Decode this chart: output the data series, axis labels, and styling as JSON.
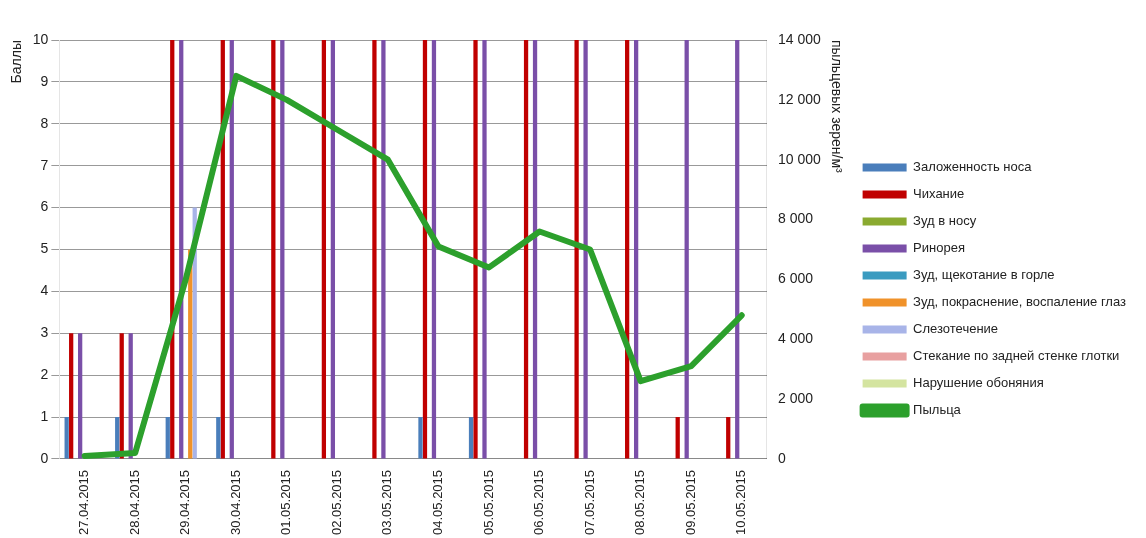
{
  "chart_data": {
    "type": "bar",
    "ylabel": "Баллы",
    "y2label": "пыльцевых зерен/м³",
    "categories": [
      "27.04.2015",
      "28.04.2015",
      "29.04.2015",
      "30.04.2015",
      "01.05.2015",
      "02.05.2015",
      "03.05.2015",
      "04.05.2015",
      "05.05.2015",
      "06.05.2015",
      "07.05.2015",
      "08.05.2015",
      "09.05.2015",
      "10.05.2015"
    ],
    "series": [
      {
        "name": "Заложенность носа",
        "color": "#4a7ebb",
        "values": [
          1,
          1,
          1,
          1,
          0,
          0,
          0,
          1,
          1,
          0,
          0,
          0,
          0,
          0
        ]
      },
      {
        "name": "Чихание",
        "color": "#c00000",
        "values": [
          3,
          3,
          10,
          10,
          10,
          10,
          10,
          10,
          10,
          10,
          10,
          10,
          1,
          1
        ]
      },
      {
        "name": "Зуд в носу",
        "color": "#8aaa30",
        "values": [
          0,
          0,
          0,
          0,
          0,
          0,
          0,
          0,
          0,
          0,
          0,
          0,
          0,
          0
        ]
      },
      {
        "name": "Ринорея",
        "color": "#7a4fa8",
        "values": [
          3,
          3,
          10,
          10,
          10,
          10,
          10,
          10,
          10,
          10,
          10,
          10,
          10,
          10
        ]
      },
      {
        "name": "Зуд, щекотание в горле",
        "color": "#3a9bc0",
        "values": [
          0,
          0,
          0,
          0,
          0,
          0,
          0,
          0,
          0,
          0,
          0,
          0,
          0,
          0
        ]
      },
      {
        "name": "Зуд, покраснение, воспаление глаз",
        "color": "#f0922a",
        "values": [
          0,
          0,
          5,
          0,
          0,
          0,
          0,
          0,
          0,
          0,
          0,
          0,
          0,
          0
        ]
      },
      {
        "name": "Слезотечение",
        "color": "#a8b4e8",
        "values": [
          0,
          0,
          6,
          0,
          0,
          0,
          0,
          0,
          0,
          0,
          0,
          0,
          0,
          0
        ]
      },
      {
        "name": "Стекание по задней стенке глотки",
        "color": "#e8a0a0",
        "values": [
          0,
          0,
          0,
          0,
          0,
          0,
          0,
          0,
          0,
          0,
          0,
          0,
          0,
          0
        ]
      },
      {
        "name": "Нарушение обоняния",
        "color": "#d4e4a0",
        "values": [
          0,
          0,
          0,
          0,
          0,
          0,
          0,
          0,
          0,
          0,
          0,
          0,
          0,
          0
        ]
      },
      {
        "name": "Пыльца",
        "type": "line",
        "axis": "y2",
        "color": "#2ca02c",
        "values": [
          100,
          200,
          6000,
          12800,
          12000,
          11000,
          10000,
          7100,
          6400,
          7600,
          7000,
          2600,
          3100,
          4800
        ]
      }
    ],
    "ylim": [
      0,
      10
    ],
    "yticks": [
      0,
      1,
      2,
      3,
      4,
      5,
      6,
      7,
      8,
      9,
      10
    ],
    "y2lim": [
      0,
      14000
    ],
    "y2ticks": [
      0,
      {
        "value": 2000,
        "label": "2 000"
      },
      {
        "value": 4000,
        "label": "4 000"
      },
      {
        "value": 6000,
        "label": "6 000"
      },
      {
        "value": 8000,
        "label": "8 000"
      },
      {
        "value": 10000,
        "label": "10 000"
      },
      {
        "value": 12000,
        "label": "12 000"
      },
      {
        "value": 14000,
        "label": "14 000"
      }
    ],
    "grid": "y",
    "legend": "right",
    "marker": "none"
  }
}
